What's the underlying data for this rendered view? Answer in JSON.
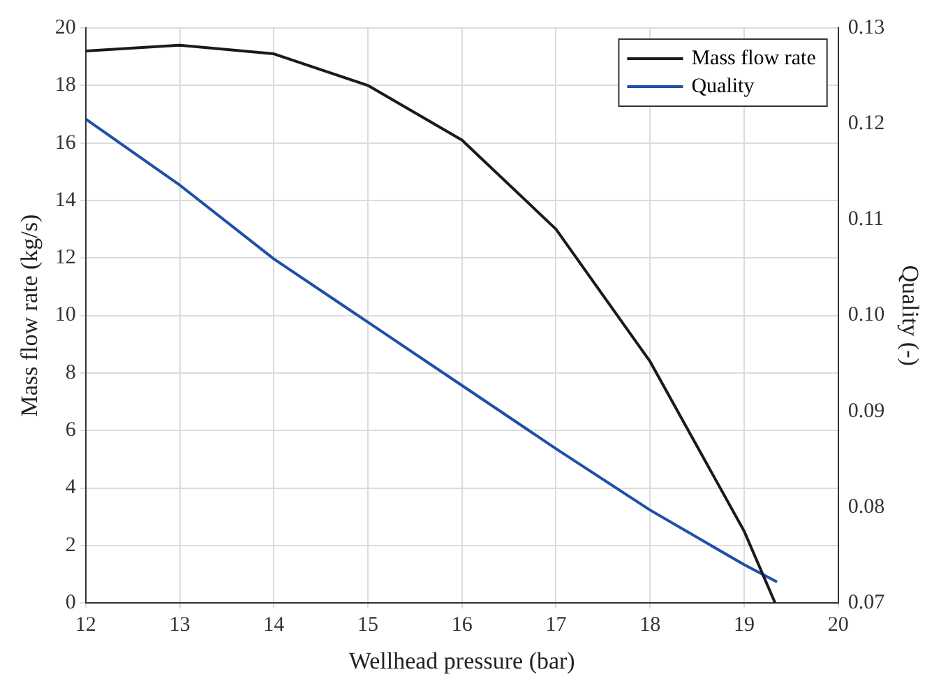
{
  "chart_data": {
    "type": "line",
    "xlabel": "Wellhead pressure (bar)",
    "ylabel": "Mass flow rate (kg/s)",
    "y2label": "Quality (-)",
    "xlim": [
      12,
      20
    ],
    "xticks": [
      12,
      13,
      14,
      15,
      16,
      17,
      18,
      19,
      20
    ],
    "ylim": [
      0,
      20
    ],
    "yticks": [
      0,
      2,
      4,
      6,
      8,
      10,
      12,
      14,
      16,
      18,
      20
    ],
    "y2lim": [
      0.07,
      0.13
    ],
    "y2ticks": [
      {
        "value": 0.07,
        "label": "0.07"
      },
      {
        "value": 0.08,
        "label": "0.08"
      },
      {
        "value": 0.09,
        "label": "0.09"
      },
      {
        "value": 0.1,
        "label": "0.10"
      },
      {
        "value": 0.11,
        "label": "0.11"
      },
      {
        "value": 0.12,
        "label": "0.12"
      },
      {
        "value": 0.13,
        "label": "0.13"
      }
    ],
    "grid": true,
    "legend": "top right",
    "marker": "none",
    "line_style": "solid",
    "series": [
      {
        "name": "Mass flow rate",
        "color": "#1a1a1a",
        "x": [
          12,
          13,
          14,
          15,
          16,
          17,
          18,
          19,
          19.33
        ],
        "values": [
          19.2,
          19.4,
          19.1,
          18.0,
          16.1,
          13.0,
          8.4,
          2.5,
          0
        ]
      },
      {
        "name": "Quality",
        "color": "#1f4fa8",
        "axis": "y2",
        "x": [
          12,
          13,
          14,
          15,
          16,
          17,
          18,
          19,
          19.35
        ],
        "values": [
          0.1205,
          0.1136,
          0.1059,
          0.0993,
          0.0927,
          0.0861,
          0.0797,
          0.074,
          0.0722
        ]
      }
    ]
  }
}
